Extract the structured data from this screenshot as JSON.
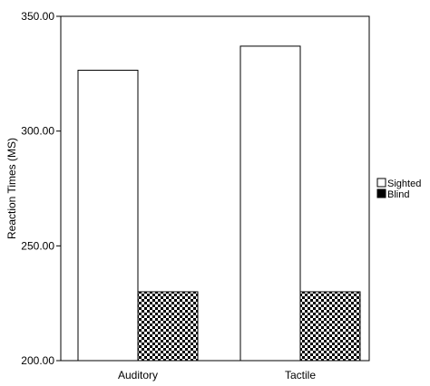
{
  "chart_data": {
    "type": "bar",
    "title": "",
    "xlabel": "",
    "ylabel": "Reaction Times (MS)",
    "categories": [
      "Auditory",
      "Tactile"
    ],
    "series": [
      {
        "name": "Sighted",
        "values": [
          326.5,
          337.0
        ],
        "fill": "#ffffff"
      },
      {
        "name": "Blind",
        "values": [
          230.0,
          230.0
        ],
        "fill": "checkerboard"
      }
    ],
    "ylim": [
      200,
      350
    ],
    "yticks": [
      200,
      250,
      300,
      350
    ],
    "ytick_labels": [
      "200.00",
      "250.00",
      "300.00",
      "350.00"
    ],
    "grid": false,
    "legend_position": "top-right"
  }
}
